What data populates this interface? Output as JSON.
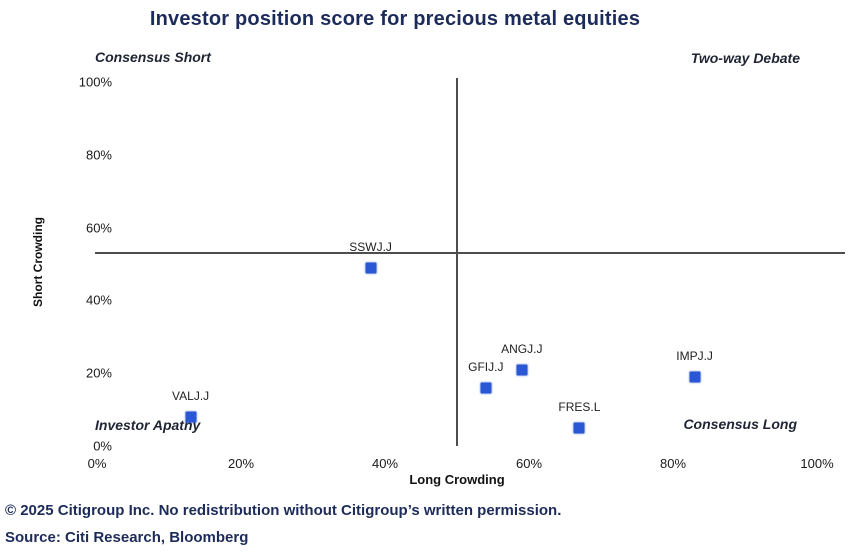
{
  "title": "Investor position score for precious metal equities",
  "quadrants": {
    "top_left": "Consensus Short",
    "top_right": "Two-way Debate",
    "bottom_left": "Investor Apathy",
    "bottom_right": "Consensus Long"
  },
  "axes": {
    "x_label": "Long Crowding",
    "y_label": "Short Crowding"
  },
  "footer": {
    "copyright": "© 2025 Citigroup Inc. No redistribution without Citigroup’s written permission.",
    "source": "Source: Citi Research, Bloomberg"
  },
  "colors": {
    "marker": "#2a57d4",
    "title_text": "#1c2b5a",
    "crosshair": "#4d4d4d"
  },
  "chart_data": {
    "type": "scatter",
    "title": "Investor position score for precious metal equities",
    "xlabel": "Long Crowding",
    "ylabel": "Short Crowding",
    "xlim": [
      0,
      100
    ],
    "ylim": [
      0,
      100
    ],
    "x_ticks": [
      0,
      20,
      40,
      60,
      80,
      100
    ],
    "y_ticks": [
      0,
      20,
      40,
      60,
      80,
      100
    ],
    "tick_format": "percent",
    "grid": false,
    "legend": false,
    "reference_lines": {
      "vertical_x": 50,
      "horizontal_y": 53
    },
    "points": [
      {
        "label": "SSWJ.J",
        "x": 38,
        "y": 49
      },
      {
        "label": "VALJ.J",
        "x": 13,
        "y": 8
      },
      {
        "label": "GFIJ.J",
        "x": 54,
        "y": 16
      },
      {
        "label": "ANGJ.J",
        "x": 59,
        "y": 21
      },
      {
        "label": "FRES.L",
        "x": 67,
        "y": 5
      },
      {
        "label": "IMPJ.J",
        "x": 83,
        "y": 19
      }
    ]
  }
}
